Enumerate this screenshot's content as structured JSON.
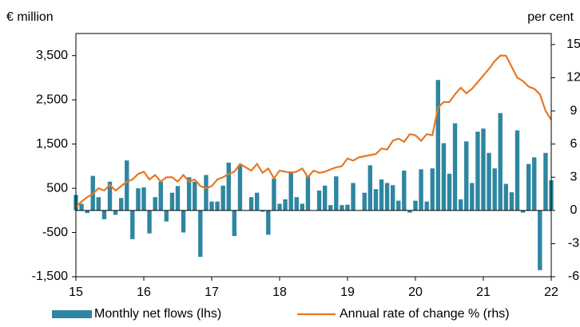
{
  "chart_data": {
    "type": "combo",
    "y_label": "€ million",
    "y2_label": "per cent",
    "x": [
      15,
      15.083,
      15.167,
      15.25,
      15.333,
      15.417,
      15.5,
      15.583,
      15.667,
      15.75,
      15.833,
      15.917,
      16,
      16.083,
      16.167,
      16.25,
      16.333,
      16.417,
      16.5,
      16.583,
      16.667,
      16.75,
      16.833,
      16.917,
      17,
      17.083,
      17.167,
      17.25,
      17.333,
      17.417,
      17.5,
      17.583,
      17.667,
      17.75,
      17.833,
      17.917,
      18,
      18.083,
      18.167,
      18.25,
      18.333,
      18.417,
      18.5,
      18.583,
      18.667,
      18.75,
      18.833,
      18.917,
      19,
      19.083,
      19.167,
      19.25,
      19.333,
      19.417,
      19.5,
      19.583,
      19.667,
      19.75,
      19.833,
      19.917,
      20,
      20.083,
      20.167,
      20.25,
      20.333,
      20.417,
      20.5,
      20.583,
      20.667,
      20.75,
      20.833,
      20.917,
      21,
      21.083,
      21.167,
      21.25,
      21.333,
      21.417,
      21.5,
      21.583,
      21.667,
      21.75,
      21.833,
      21.917,
      22
    ],
    "xlim": [
      15,
      22
    ],
    "xticks": [
      15,
      16,
      17,
      18,
      19,
      20,
      21,
      22
    ],
    "ylim": [
      -1500,
      4000
    ],
    "yticks": [
      {
        "value": -1500,
        "label": "-1,500"
      },
      -500,
      500,
      {
        "value": 1500,
        "label": "1,500"
      },
      {
        "value": 2500,
        "label": "2,500"
      },
      {
        "value": 3500,
        "label": "3,500"
      }
    ],
    "y2lim": [
      -6,
      16
    ],
    "y2ticks": [
      -6,
      -3,
      0,
      3,
      6,
      9,
      12,
      15
    ],
    "series": [
      {
        "name": "Monthly net flows (lhs)",
        "type": "bar",
        "color": "#2e86a0",
        "values": [
          350,
          150,
          -60,
          780,
          300,
          -200,
          650,
          -100,
          280,
          1130,
          -650,
          500,
          520,
          -520,
          300,
          650,
          -250,
          400,
          550,
          -500,
          750,
          650,
          -1050,
          800,
          200,
          200,
          560,
          1080,
          -580,
          1020,
          0,
          300,
          400,
          -30,
          -550,
          720,
          150,
          250,
          880,
          300,
          150,
          770,
          0,
          450,
          560,
          120,
          770,
          120,
          130,
          620,
          0,
          400,
          1020,
          480,
          700,
          620,
          570,
          220,
          900,
          -50,
          220,
          930,
          200,
          950,
          2950,
          1520,
          830,
          1970,
          250,
          1560,
          620,
          1780,
          1850,
          1300,
          950,
          2200,
          600,
          410,
          1810,
          -50,
          1050,
          1200,
          -1350,
          1300,
          680
        ]
      },
      {
        "name": "Annual rate of change % (rhs)",
        "type": "line",
        "axis": "y2",
        "color": "#e87722",
        "values": [
          0.3,
          0.8,
          1.2,
          1.5,
          2.0,
          1.8,
          2.3,
          1.8,
          2.2,
          2.6,
          2.8,
          3.3,
          3.5,
          2.8,
          3.2,
          2.6,
          3.0,
          3.0,
          2.6,
          3.2,
          2.6,
          2.8,
          2.2,
          2.0,
          2.2,
          2.8,
          3.0,
          3.3,
          3.5,
          4.2,
          3.9,
          3.6,
          4.2,
          3.4,
          3.8,
          2.9,
          3.6,
          3.5,
          3.4,
          3.5,
          3.8,
          3.0,
          3.6,
          3.4,
          3.5,
          3.7,
          3.9,
          4.0,
          4.7,
          4.5,
          4.8,
          4.9,
          5.0,
          5.1,
          5.6,
          5.5,
          6.3,
          6.5,
          6.2,
          6.9,
          6.8,
          6.3,
          6.9,
          6.8,
          9.3,
          9.8,
          9.8,
          10.5,
          11.1,
          10.6,
          11.0,
          11.6,
          12.2,
          12.8,
          13.5,
          14.0,
          14.0,
          13.0,
          12.0,
          11.7,
          11.2,
          11.0,
          10.5,
          9.0,
          8.2
        ]
      }
    ]
  }
}
